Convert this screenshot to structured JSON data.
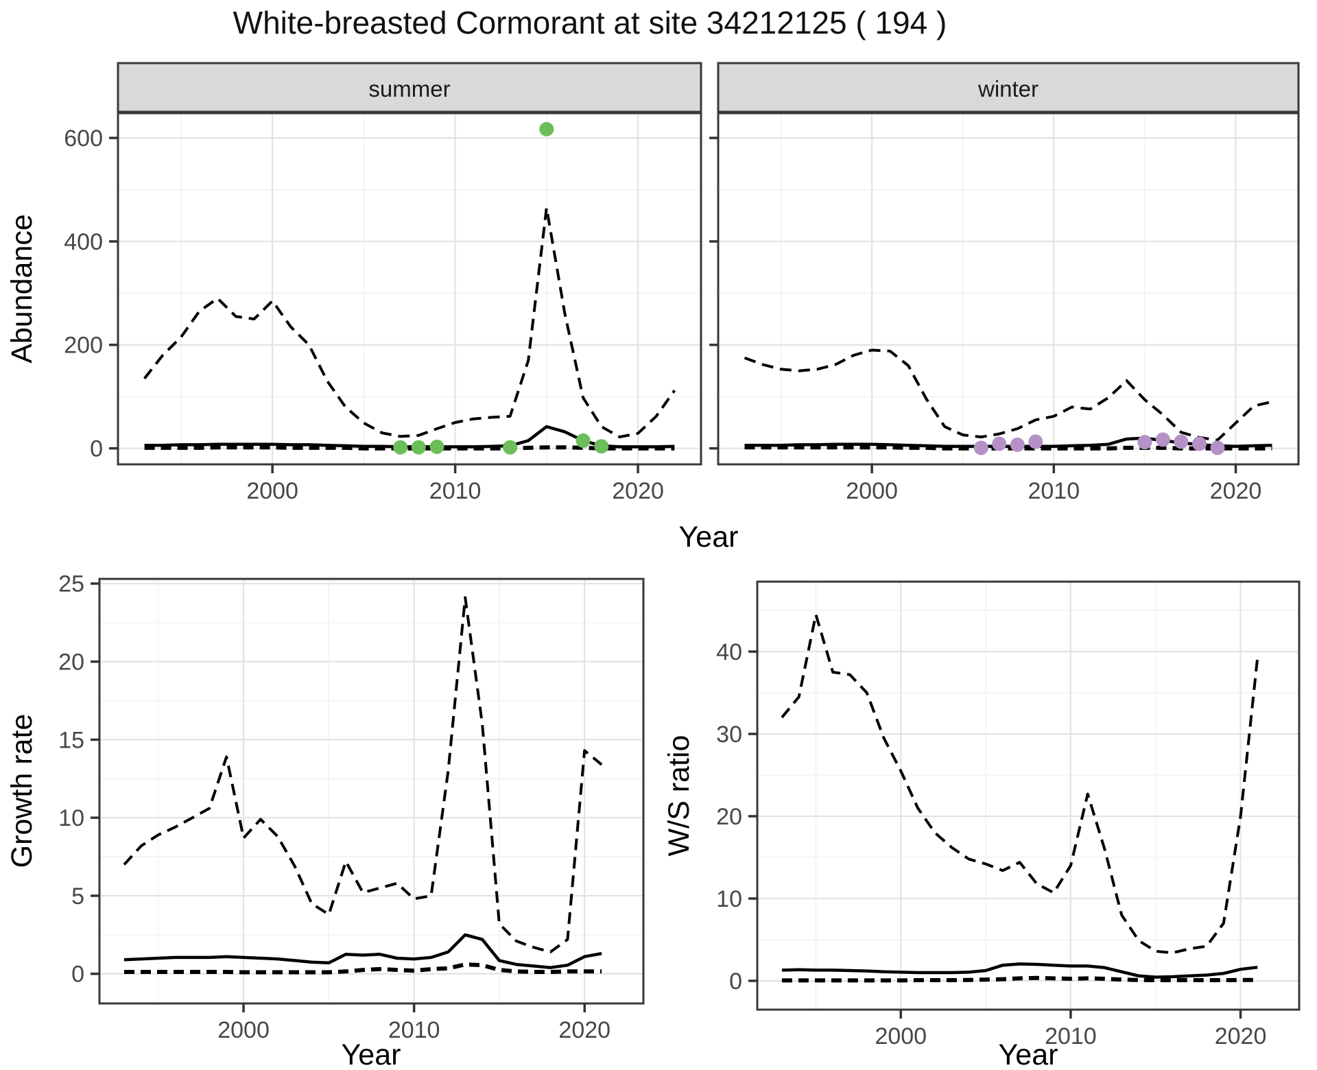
{
  "title": "White-breasted Cormorant at site 34212125 ( 194 )",
  "figure": {
    "shared_x_label": "Year",
    "facet_labels": [
      "summer",
      "winter"
    ],
    "x_tick_labels": [
      "2000",
      "2010",
      "2020"
    ]
  },
  "colors": {
    "summer_dot": "#6BBE5A",
    "winter_dot": "#B591C8",
    "strip_bg": "#D9D9D9",
    "panel_border": "#383838",
    "grid_major": "#E3E3E3",
    "grid_minor": "#F1F1F1",
    "tick_text": "#474747",
    "line": "#000000",
    "axis_title": "#000000"
  },
  "chart_data": [
    {
      "type": "line",
      "id": "abundance-summer",
      "facet_label": "summer",
      "xlabel": "Year",
      "ylabel": "Abundance",
      "x": [
        1993,
        1994,
        1995,
        1996,
        1997,
        1998,
        1999,
        2000,
        2001,
        2002,
        2003,
        2004,
        2005,
        2006,
        2007,
        2008,
        2009,
        2010,
        2011,
        2012,
        2013,
        2014,
        2015,
        2016,
        2017,
        2018,
        2019,
        2020,
        2021,
        2022
      ],
      "series": [
        {
          "name": "upper-95ci",
          "style": "dashed",
          "values": [
            135,
            180,
            215,
            265,
            290,
            255,
            250,
            285,
            235,
            200,
            130,
            80,
            49,
            30,
            23,
            25,
            38,
            50,
            57,
            60,
            62,
            170,
            465,
            260,
            98,
            42,
            22,
            29,
            62,
            112
          ]
        },
        {
          "name": "median",
          "style": "solid",
          "values": [
            6,
            6,
            7,
            7,
            8,
            8,
            8,
            8,
            7,
            7,
            6,
            5,
            4,
            4,
            3,
            3,
            3,
            3,
            3,
            4,
            5,
            15,
            42,
            32,
            15,
            5,
            3,
            3,
            3,
            4
          ]
        },
        {
          "name": "lower-95ci",
          "style": "dashed-heavy",
          "values": [
            1,
            1,
            1,
            1,
            2,
            2,
            2,
            2,
            1,
            1,
            1,
            1,
            0,
            0,
            0,
            0,
            0,
            0,
            0,
            0,
            0,
            1,
            2,
            2,
            1,
            0,
            0,
            0,
            0,
            0
          ]
        }
      ],
      "points": {
        "name": "observed-count",
        "color": "#6BBE5A",
        "x": [
          2007,
          2008,
          2009,
          2013,
          2015,
          2017,
          2018
        ],
        "y": [
          2,
          2,
          3,
          2,
          617,
          15,
          4
        ]
      },
      "xlim": [
        1991.55,
        2023.45
      ],
      "ylim": [
        -30.9,
        647.9
      ],
      "xticks": [
        2000,
        2010,
        2020
      ],
      "xminor": [
        1995,
        2005,
        2015
      ],
      "yticks": [
        0,
        200,
        400,
        600
      ],
      "yminor": [
        100,
        300,
        500
      ],
      "grid": true,
      "legend": "none"
    },
    {
      "type": "line",
      "id": "abundance-winter",
      "facet_label": "winter",
      "xlabel": "Year",
      "ylabel": "Abundance",
      "x": [
        1993,
        1994,
        1995,
        1996,
        1997,
        1998,
        1999,
        2000,
        2001,
        2002,
        2003,
        2004,
        2005,
        2006,
        2007,
        2008,
        2009,
        2010,
        2011,
        2012,
        2013,
        2014,
        2015,
        2016,
        2017,
        2018,
        2019,
        2020,
        2021,
        2022
      ],
      "series": [
        {
          "name": "upper-95ci",
          "style": "dashed",
          "values": [
            175,
            162,
            153,
            150,
            153,
            162,
            180,
            190,
            188,
            160,
            95,
            42,
            26,
            22,
            28,
            38,
            55,
            62,
            80,
            76,
            98,
            131,
            94,
            65,
            31,
            21,
            16,
            49,
            82,
            90
          ]
        },
        {
          "name": "median",
          "style": "solid",
          "values": [
            6,
            6,
            6,
            7,
            7,
            8,
            8,
            8,
            7,
            6,
            5,
            4,
            4,
            4,
            4,
            4,
            4,
            4,
            5,
            6,
            8,
            18,
            20,
            15,
            11,
            7,
            5,
            4,
            5,
            6
          ]
        },
        {
          "name": "lower-95ci",
          "style": "dashed-heavy",
          "values": [
            2,
            2,
            2,
            2,
            2,
            2,
            2,
            2,
            2,
            1,
            1,
            0,
            0,
            0,
            0,
            0,
            0,
            0,
            0,
            0,
            0,
            1,
            1,
            1,
            0,
            0,
            0,
            0,
            0,
            0
          ]
        }
      ],
      "points": {
        "name": "observed-count",
        "color": "#B591C8",
        "x": [
          2006,
          2007,
          2008,
          2009,
          2015,
          2016,
          2017,
          2018,
          2019
        ],
        "y": [
          1,
          9,
          7,
          13,
          12,
          17,
          13,
          9,
          1
        ]
      },
      "xlim": [
        1991.55,
        2023.45
      ],
      "ylim": [
        -30.9,
        647.9
      ],
      "xticks": [
        2000,
        2010,
        2020
      ],
      "xminor": [
        1995,
        2005,
        2015
      ],
      "yticks": [
        0,
        200,
        400,
        600
      ],
      "yminor": [
        100,
        300,
        500
      ],
      "grid": true,
      "legend": "none"
    },
    {
      "type": "line",
      "id": "growth-rate",
      "facet_label": "",
      "xlabel": "Year",
      "ylabel": "Growth rate",
      "x": [
        1993,
        1994,
        1995,
        1996,
        1997,
        1998,
        1999,
        2000,
        2001,
        2002,
        2003,
        2004,
        2005,
        2006,
        2007,
        2008,
        2009,
        2010,
        2011,
        2012,
        2013,
        2014,
        2015,
        2016,
        2017,
        2018,
        2019,
        2020,
        2021
      ],
      "series": [
        {
          "name": "upper-95ci",
          "style": "dashed",
          "values": [
            7.0,
            8.2,
            8.9,
            9.4,
            10.0,
            10.6,
            13.9,
            8.7,
            9.9,
            8.8,
            6.9,
            4.5,
            3.8,
            7.2,
            5.2,
            5.5,
            5.8,
            4.8,
            5.0,
            13.0,
            24.1,
            16.0,
            3.2,
            2.1,
            1.7,
            1.4,
            2.2,
            14.3,
            13.4
          ]
        },
        {
          "name": "median",
          "style": "solid",
          "values": [
            0.9,
            0.95,
            1.0,
            1.05,
            1.05,
            1.05,
            1.1,
            1.05,
            1.0,
            0.95,
            0.85,
            0.75,
            0.7,
            1.25,
            1.2,
            1.25,
            1.0,
            0.95,
            1.05,
            1.4,
            2.5,
            2.2,
            0.85,
            0.6,
            0.5,
            0.4,
            0.55,
            1.1,
            1.3
          ]
        },
        {
          "name": "lower-95ci",
          "style": "dashed-heavy",
          "values": [
            0.12,
            0.12,
            0.12,
            0.12,
            0.12,
            0.12,
            0.12,
            0.1,
            0.1,
            0.1,
            0.1,
            0.1,
            0.1,
            0.15,
            0.25,
            0.3,
            0.25,
            0.2,
            0.3,
            0.35,
            0.6,
            0.55,
            0.25,
            0.15,
            0.12,
            0.12,
            0.15,
            0.15,
            0.15
          ]
        }
      ],
      "xlim": [
        1991.55,
        2023.45
      ],
      "ylim": [
        -1.9,
        25.3
      ],
      "xticks": [
        2000,
        2010,
        2020
      ],
      "xminor": [
        1995,
        2005,
        2015
      ],
      "yticks": [
        0,
        5,
        10,
        15,
        20,
        25
      ],
      "yminor": [
        2.5,
        7.5,
        12.5,
        17.5,
        22.5
      ],
      "grid": true,
      "legend": "none"
    },
    {
      "type": "line",
      "id": "ws-ratio",
      "facet_label": "",
      "xlabel": "Year",
      "ylabel": "W/S ratio",
      "x": [
        1993,
        1994,
        1995,
        1996,
        1997,
        1998,
        1999,
        2000,
        2001,
        2002,
        2003,
        2004,
        2005,
        2006,
        2007,
        2008,
        2009,
        2010,
        2011,
        2012,
        2013,
        2014,
        2015,
        2016,
        2017,
        2018,
        2019,
        2020,
        2021
      ],
      "series": [
        {
          "name": "upper-95ci",
          "style": "dashed",
          "values": [
            32,
            34.5,
            44.5,
            37.5,
            37.2,
            35,
            29.5,
            25.5,
            21,
            18,
            16.2,
            14.8,
            14.2,
            13.4,
            14.4,
            11.8,
            10.7,
            14,
            22.7,
            16,
            8,
            4.9,
            3.6,
            3.4,
            3.9,
            4.2,
            7,
            20,
            39.3
          ]
        },
        {
          "name": "median",
          "style": "solid",
          "values": [
            1.3,
            1.35,
            1.3,
            1.3,
            1.25,
            1.2,
            1.1,
            1.05,
            1.0,
            1.0,
            1.0,
            1.05,
            1.25,
            1.9,
            2.05,
            2.0,
            1.9,
            1.8,
            1.8,
            1.6,
            1.1,
            0.6,
            0.45,
            0.5,
            0.6,
            0.7,
            0.9,
            1.4,
            1.65
          ]
        },
        {
          "name": "lower-95ci",
          "style": "dashed-heavy",
          "values": [
            0.05,
            0.05,
            0.05,
            0.05,
            0.05,
            0.05,
            0.05,
            0.05,
            0.08,
            0.08,
            0.08,
            0.1,
            0.15,
            0.2,
            0.3,
            0.35,
            0.3,
            0.25,
            0.3,
            0.25,
            0.15,
            0.1,
            0.08,
            0.08,
            0.08,
            0.08,
            0.08,
            0.1,
            0.1
          ]
        }
      ],
      "xlim": [
        1991.55,
        2023.45
      ],
      "ylim": [
        -3.5,
        48.5
      ],
      "xticks": [
        2000,
        2010,
        2020
      ],
      "xminor": [
        1995,
        2005,
        2015
      ],
      "yticks": [
        0,
        10,
        20,
        30,
        40
      ],
      "yminor": [
        5,
        15,
        25,
        35,
        45
      ],
      "grid": true,
      "legend": "none"
    }
  ]
}
